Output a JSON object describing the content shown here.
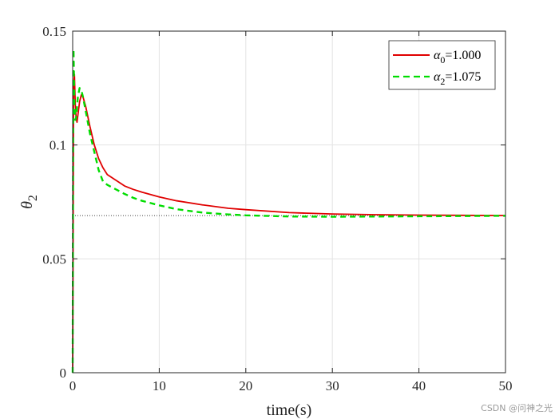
{
  "chart_data": {
    "type": "line",
    "xlabel": "time(s)",
    "ylabel": {
      "base": "θ",
      "sub": "2"
    },
    "xlim": [
      0,
      50
    ],
    "ylim": [
      0,
      0.15
    ],
    "xticks": [
      0,
      10,
      20,
      30,
      40,
      50
    ],
    "xtick_labels": [
      "0",
      "10",
      "20",
      "30",
      "40",
      "50"
    ],
    "yticks": [
      0,
      0.05,
      0.1,
      0.15
    ],
    "ytick_labels": [
      "0",
      "0.05",
      "0.1",
      "0.15"
    ],
    "grid": true,
    "legend_position": "top-right",
    "reference_line": {
      "y": 0.069,
      "style": "dotted",
      "color": "#000000"
    },
    "series": [
      {
        "name": {
          "base": "α",
          "sub": "0",
          "suffix": "=1.000"
        },
        "color": "#e00000",
        "style": "solid",
        "x": [
          0,
          0.1,
          0.2,
          0.3,
          0.4,
          0.5,
          0.6,
          0.8,
          1.0,
          1.2,
          1.5,
          2,
          2.5,
          3,
          3.5,
          4,
          5,
          6,
          7,
          8,
          10,
          12,
          15,
          18,
          20,
          25,
          30,
          35,
          40,
          45,
          50
        ],
        "y": [
          0,
          0.125,
          0.131,
          0.118,
          0.112,
          0.11,
          0.113,
          0.119,
          0.122,
          0.121,
          0.117,
          0.108,
          0.1,
          0.094,
          0.09,
          0.087,
          0.0845,
          0.082,
          0.0805,
          0.0793,
          0.0772,
          0.0755,
          0.0737,
          0.0722,
          0.0716,
          0.0703,
          0.0697,
          0.0694,
          0.0692,
          0.0691,
          0.069
        ]
      },
      {
        "name": {
          "base": "α",
          "sub": "2",
          "suffix": "=1.075"
        },
        "color": "#00dd00",
        "style": "dashed",
        "x": [
          0,
          0.05,
          0.1,
          0.15,
          0.2,
          0.3,
          0.4,
          0.5,
          0.6,
          0.8,
          1.0,
          1.2,
          1.5,
          2,
          2.5,
          3,
          3.5,
          4,
          5,
          6,
          7,
          8,
          10,
          12,
          15,
          18,
          20,
          25,
          30,
          35,
          40,
          45,
          50
        ],
        "y": [
          0,
          0.1,
          0.142,
          0.13,
          0.118,
          0.111,
          0.112,
          0.117,
          0.121,
          0.125,
          0.124,
          0.121,
          0.115,
          0.105,
          0.097,
          0.089,
          0.084,
          0.0825,
          0.0805,
          0.0785,
          0.0768,
          0.0755,
          0.0735,
          0.0718,
          0.0703,
          0.0695,
          0.0691,
          0.0686,
          0.0685,
          0.0686,
          0.0687,
          0.0688,
          0.0689
        ]
      }
    ]
  },
  "watermark": "CSDN @问神之光"
}
